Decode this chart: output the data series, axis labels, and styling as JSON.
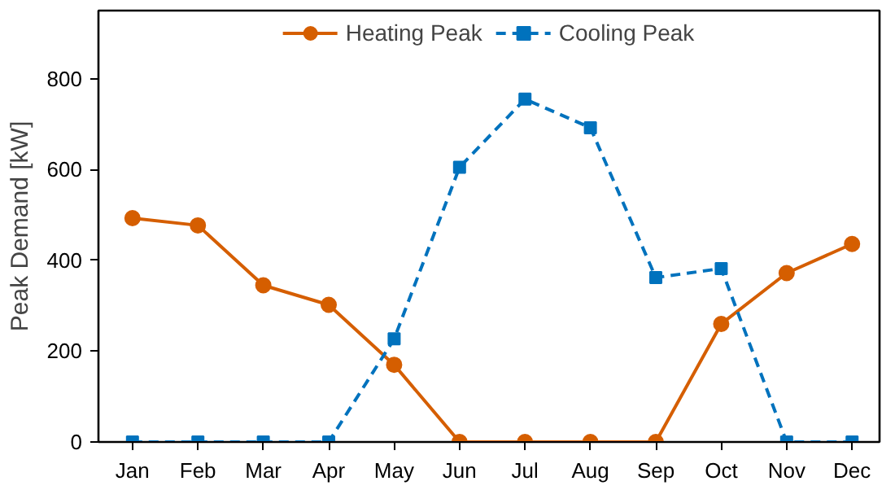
{
  "chart_data": {
    "type": "line",
    "ylabel": "Peak Demand [kW]",
    "categories": [
      "Jan",
      "Feb",
      "Mar",
      "Apr",
      "May",
      "Jun",
      "Jul",
      "Aug",
      "Sep",
      "Oct",
      "Nov",
      "Dec"
    ],
    "series": [
      {
        "name": "Heating Peak",
        "color": "#d55e00",
        "marker": "circle",
        "line_style": "solid",
        "values": [
          493,
          477,
          345,
          302,
          170,
          0,
          0,
          0,
          0,
          260,
          372,
          436
        ]
      },
      {
        "name": "Cooling Peak",
        "color": "#0072bd",
        "marker": "square",
        "line_style": "dashed",
        "values": [
          0,
          0,
          0,
          0,
          227,
          605,
          755,
          692,
          362,
          382,
          0,
          0
        ]
      }
    ],
    "ylim": [
      0,
      950
    ],
    "yticks": [
      0,
      200,
      400,
      600,
      800
    ],
    "grid": false,
    "legend": "top"
  }
}
